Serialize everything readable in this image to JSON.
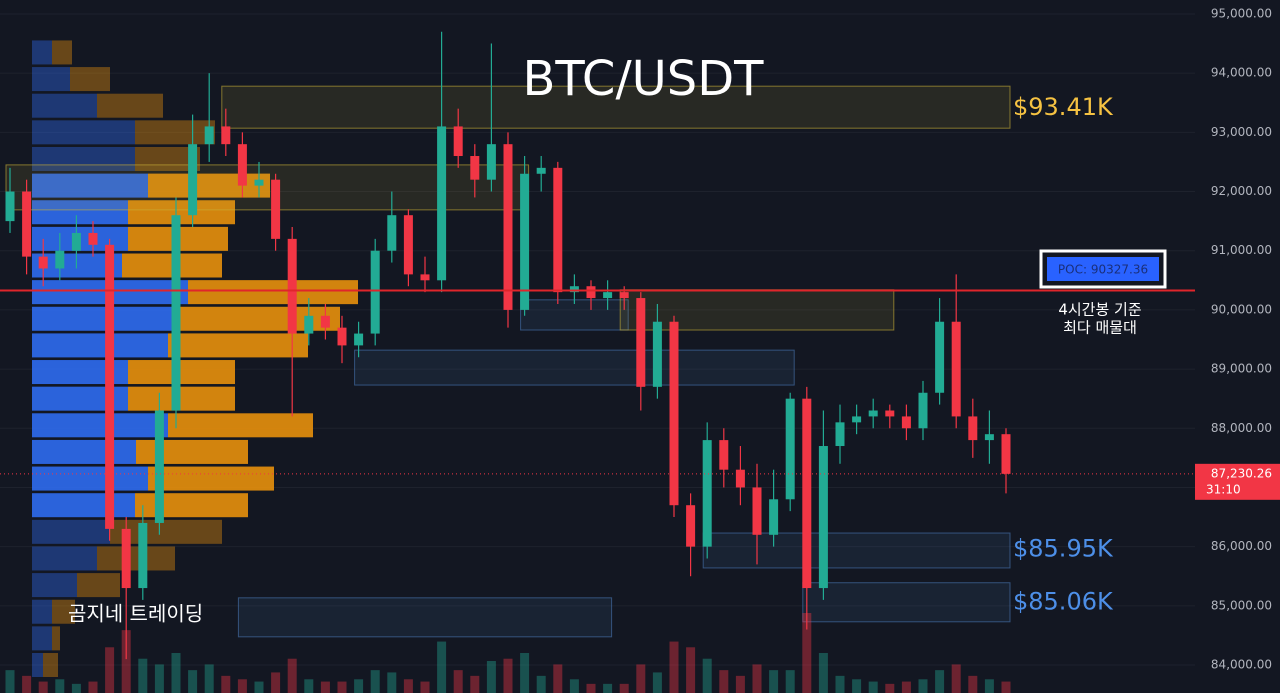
{
  "chart_data": {
    "type": "candlestick",
    "title": "BTC/USDT",
    "watermark": "곰지네 트레이딩",
    "ylim": [
      83527,
      95236
    ],
    "yticks": [
      {
        "value": 84000,
        "label": "84,000.00"
      },
      {
        "value": 85000,
        "label": "85,000.00"
      },
      {
        "value": 86000,
        "label": "86,000.00"
      },
      {
        "value": 87000,
        "label": "87,000.00"
      },
      {
        "value": 88000,
        "label": "88,000.00"
      },
      {
        "value": 89000,
        "label": "89,000.00"
      },
      {
        "value": 90000,
        "label": "90,000.00"
      },
      {
        "value": 91000,
        "label": "91,000.00"
      },
      {
        "value": 92000,
        "label": "92,000.00"
      },
      {
        "value": 93000,
        "label": "93,000.00"
      },
      {
        "value": 94000,
        "label": "94,000.00"
      },
      {
        "value": 95000,
        "label": "95,000.00"
      }
    ],
    "grid": true,
    "up_color": "#22ab94",
    "down_color": "#f23645",
    "open": [
      91500,
      92000,
      90900,
      90700,
      91000,
      91300,
      91100,
      86300,
      85300,
      86400,
      88300,
      91600,
      92800,
      93100,
      92800,
      92100,
      92200,
      91200,
      89600,
      89900,
      89700,
      89400,
      89600,
      91000,
      91600,
      90600,
      90500,
      93100,
      92600,
      92200,
      92800,
      90000,
      92300,
      92400,
      90300,
      90400,
      90200,
      90300,
      90200,
      88700,
      89800,
      86700,
      86000,
      87800,
      87300,
      87000,
      86200,
      86800,
      88500,
      85300,
      87700,
      88100,
      88200,
      88300,
      88200,
      88000,
      88600,
      89800,
      88200,
      87800,
      87900
    ],
    "high": [
      92400,
      92200,
      91200,
      91300,
      91600,
      91500,
      91200,
      86500,
      86700,
      88600,
      91900,
      93300,
      94000,
      93400,
      93000,
      92500,
      92300,
      91400,
      90200,
      90100,
      89900,
      89800,
      91200,
      92000,
      91700,
      90900,
      94700,
      93400,
      92800,
      94500,
      93000,
      92600,
      92600,
      92500,
      90600,
      90500,
      90500,
      90400,
      90300,
      90100,
      89900,
      86900,
      88100,
      88000,
      87700,
      87400,
      87300,
      88600,
      88700,
      88300,
      88400,
      88400,
      88500,
      88400,
      88400,
      88800,
      90200,
      90600,
      88500,
      88300,
      88000
    ],
    "low": [
      91300,
      90600,
      90400,
      90500,
      90700,
      90900,
      86100,
      84100,
      85100,
      86200,
      88000,
      91400,
      92500,
      92600,
      91900,
      91900,
      91000,
      88200,
      89400,
      89500,
      89100,
      89200,
      89400,
      90800,
      90400,
      90300,
      90300,
      92400,
      91900,
      92000,
      89700,
      89900,
      92000,
      90100,
      90100,
      90000,
      90000,
      90000,
      88300,
      88500,
      86500,
      85500,
      85800,
      87000,
      86700,
      85700,
      86000,
      86600,
      84600,
      85100,
      87400,
      87900,
      88000,
      88000,
      87800,
      87800,
      88400,
      88000,
      87500,
      87400,
      86900
    ],
    "close": [
      92000,
      90900,
      90700,
      91000,
      91300,
      91100,
      86300,
      85300,
      86400,
      88300,
      91600,
      92800,
      93100,
      92800,
      92100,
      92200,
      91200,
      89600,
      89900,
      89700,
      89400,
      89600,
      91000,
      91600,
      90600,
      90500,
      93100,
      92600,
      92200,
      92800,
      90000,
      92300,
      92400,
      90300,
      90400,
      90200,
      90300,
      90200,
      88700,
      89800,
      86700,
      86000,
      87800,
      87300,
      87000,
      86200,
      86800,
      88500,
      85300,
      87700,
      88100,
      88200,
      88300,
      88200,
      88000,
      88600,
      89800,
      88200,
      87800,
      87900,
      87230
    ],
    "volume": [
      20,
      15,
      10,
      12,
      8,
      10,
      40,
      55,
      30,
      25,
      35,
      20,
      25,
      15,
      12,
      10,
      18,
      30,
      12,
      10,
      10,
      12,
      20,
      18,
      12,
      10,
      45,
      20,
      15,
      28,
      30,
      35,
      15,
      25,
      12,
      8,
      8,
      8,
      25,
      18,
      45,
      40,
      30,
      20,
      15,
      25,
      20,
      20,
      70,
      35,
      15,
      12,
      10,
      8,
      10,
      12,
      20,
      25,
      15,
      12,
      10
    ],
    "profile": {
      "prices": [
        94350,
        93900,
        93450,
        93000,
        92550,
        92100,
        91650,
        91200,
        90750,
        90300,
        89850,
        89400,
        88950,
        88500,
        88050,
        87600,
        87150,
        86700,
        86250,
        85800,
        85350,
        84900,
        84450,
        84000
      ],
      "buy": [
        20,
        38,
        65,
        103,
        103,
        116,
        96,
        96,
        90,
        156,
        148,
        136,
        96,
        96,
        136,
        104,
        116,
        103,
        78,
        65,
        45,
        20,
        20,
        11
      ],
      "sell": [
        20,
        40,
        66,
        80,
        65,
        122,
        107,
        100,
        100,
        170,
        160,
        140,
        107,
        107,
        145,
        112,
        126,
        113,
        112,
        78,
        43,
        23,
        8,
        15
      ],
      "buy_color": "#2f6cf0",
      "sell_color": "#e8900c",
      "value_area": [
        86500,
        92100
      ]
    },
    "zones": [
      {
        "range": [
          93070,
          93780
        ],
        "from": 13,
        "to": 60,
        "color": "#c9b037",
        "level": 93410,
        "label": "$93.41K",
        "label_color": "#f5c242"
      },
      {
        "range": [
          91690,
          92450
        ],
        "from": 0,
        "to": 31,
        "color": "#c9b037"
      },
      {
        "range": [
          89660,
          90170
        ],
        "from": 31,
        "to": 37,
        "color": "#4a78b5"
      },
      {
        "range": [
          89660,
          90340
        ],
        "from": 37,
        "to": 53,
        "color": "#c9b037"
      },
      {
        "range": [
          88730,
          89320
        ],
        "from": 21,
        "to": 47,
        "color": "#4a78b5"
      },
      {
        "range": [
          85640,
          86230
        ],
        "from": 42,
        "to": 60,
        "color": "#4a78b5",
        "level": 85950,
        "label": "$85.95K",
        "label_color": "#4d8fe8"
      },
      {
        "range": [
          84730,
          85390
        ],
        "from": 48,
        "to": 60,
        "color": "#4a78b5",
        "level": 85060,
        "label": "$85.06K",
        "label_color": "#4d8fe8"
      },
      {
        "range": [
          84476,
          85135
        ],
        "from": 14,
        "to": 36,
        "color": "#4a78b5"
      }
    ],
    "poc": {
      "value": 90327.36,
      "label": "POC: 90327.36",
      "color": "#e0252b",
      "note": [
        "4시간봉 기준",
        "최다 매물대"
      ]
    },
    "last_price": {
      "value": 87230.26,
      "label": "87,230.26",
      "countdown": "31:10",
      "color": "#f23645"
    }
  }
}
